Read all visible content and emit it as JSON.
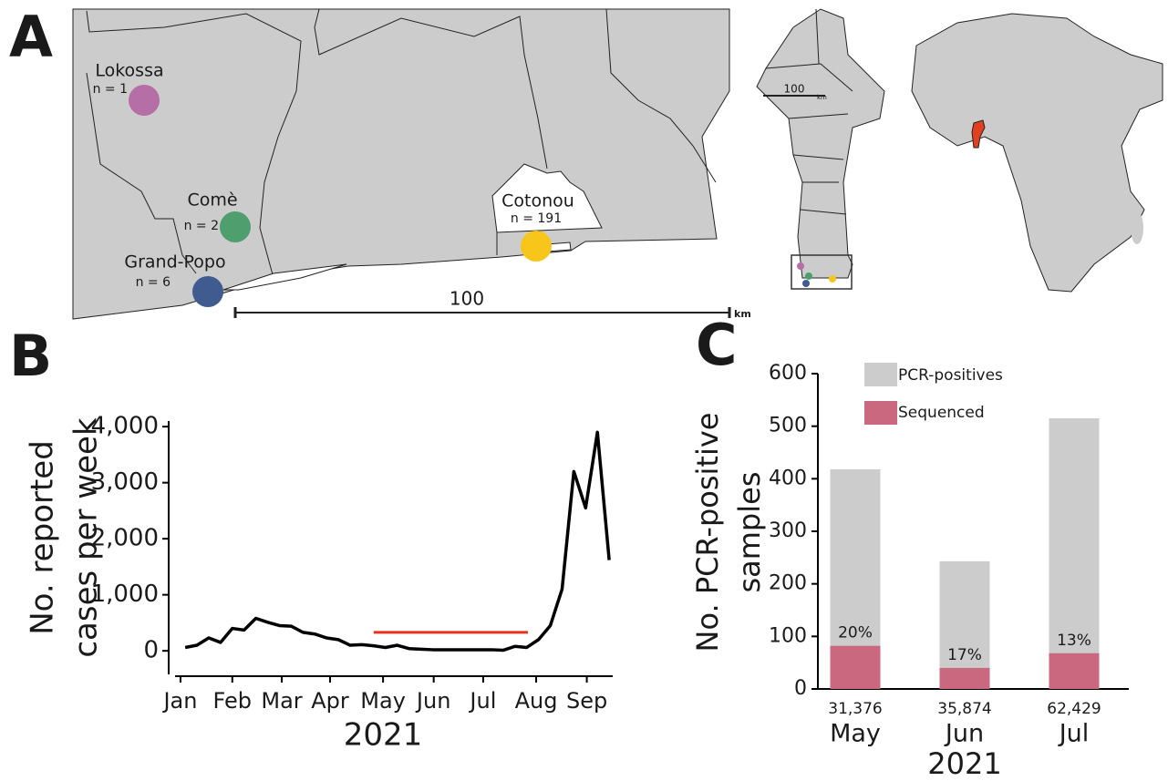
{
  "panel_labels": [
    "A",
    "B",
    "C"
  ],
  "map": {
    "locations": [
      {
        "name": "Lokossa",
        "n": "n = 1",
        "color": "#b56ea6"
      },
      {
        "name": "Comè",
        "n": "n = 2",
        "color": "#4f9e6d"
      },
      {
        "name": "Grand-Popo",
        "n": "n = 6",
        "color": "#3f5b8f"
      },
      {
        "name": "Cotonou",
        "n": "n = 191",
        "color": "#f8c51a"
      }
    ],
    "scale": {
      "label": "100",
      "unit": "km"
    },
    "inset_scale": {
      "label": "100",
      "unit": "km"
    }
  },
  "chart_data": [
    {
      "type": "line",
      "ylabel": [
        "No. reported",
        "cases per week"
      ],
      "xlabel": "2021",
      "x": [
        1,
        2,
        3,
        4,
        5,
        6,
        7,
        8,
        9,
        10,
        11,
        12,
        13,
        14,
        15,
        16,
        17,
        18,
        19,
        20,
        21,
        22,
        23,
        24,
        25,
        26,
        27,
        28,
        29,
        30,
        31,
        32,
        33,
        34,
        35,
        36,
        37
      ],
      "values": [
        60,
        100,
        230,
        150,
        400,
        370,
        580,
        510,
        450,
        440,
        330,
        300,
        230,
        200,
        100,
        110,
        90,
        60,
        100,
        40,
        30,
        20,
        20,
        20,
        20,
        20,
        20,
        10,
        80,
        60,
        200,
        450,
        1100,
        3200,
        2550,
        3900,
        1620
      ],
      "color": "#000000",
      "highlight": {
        "x": [
          17,
          30.1
        ],
        "y": 330,
        "color": "#e8321e"
      },
      "xlim": [
        0.14,
        37.3
      ],
      "xticks": [
        {
          "value": 0.6,
          "label": "Jan"
        },
        {
          "value": 5,
          "label": "Feb"
        },
        {
          "value": 9.2,
          "label": "Mar"
        },
        {
          "value": 13.3,
          "label": "Apr"
        },
        {
          "value": 17.8,
          "label": "May"
        },
        {
          "value": 22.1,
          "label": "Jun"
        },
        {
          "value": 26.3,
          "label": "Jul"
        },
        {
          "value": 30.8,
          "label": "Aug"
        },
        {
          "value": 35.1,
          "label": "Sep"
        }
      ],
      "ylim": [
        -420,
        4100
      ],
      "yticks": [
        0,
        {
          "value": 1000,
          "label": "1,000"
        },
        {
          "value": 2000,
          "label": "2,000"
        },
        {
          "value": 3000,
          "label": "3,000"
        },
        {
          "value": 4000,
          "label": "4,000"
        }
      ]
    },
    {
      "type": "bar",
      "ylabel": [
        "No. PCR-positive",
        "samples"
      ],
      "xlabel": "2021",
      "categories": [
        "May",
        "Jun",
        "Jul"
      ],
      "sublabels": [
        "31,376",
        "35,874",
        "62,429"
      ],
      "series": [
        {
          "name": "PCR-positives",
          "color": "#cccccc",
          "values": [
            418,
            243,
            515
          ]
        },
        {
          "name": "Sequenced",
          "color": "#c9687e",
          "values": [
            82,
            40,
            68
          ]
        }
      ],
      "percent_sequenced": {
        "values": [
          20,
          17,
          13
        ],
        "labels": [
          "20%",
          "17%",
          "13%"
        ]
      },
      "ylim": [
        0,
        600
      ],
      "yticks": [
        0,
        100,
        200,
        300,
        400,
        500,
        600
      ],
      "legend": "top-left"
    }
  ]
}
